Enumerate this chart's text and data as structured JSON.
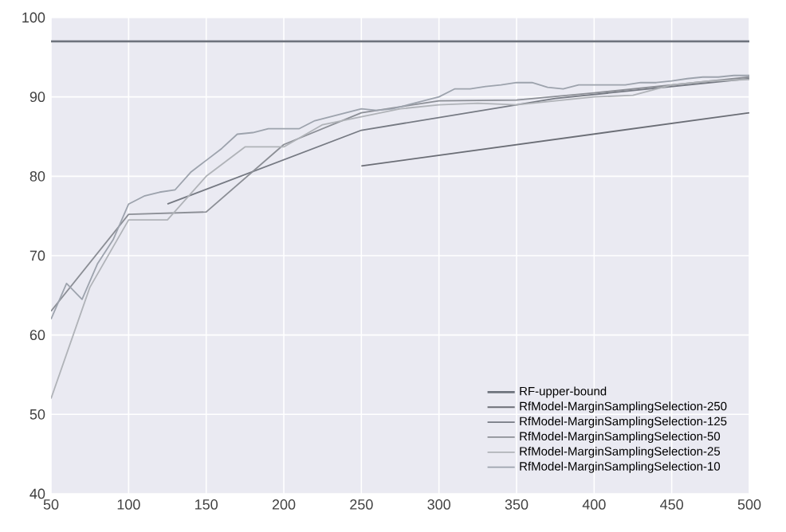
{
  "chart_data": {
    "type": "line",
    "xlim": [
      50,
      500
    ],
    "ylim": [
      40,
      100
    ],
    "xticks": [
      50,
      100,
      150,
      200,
      250,
      300,
      350,
      400,
      450,
      500
    ],
    "yticks": [
      40,
      50,
      60,
      70,
      80,
      90,
      100
    ],
    "grid": true,
    "legend": "bottom right",
    "line_style": "solid",
    "series": [
      {
        "name": "RF-upper-bound",
        "color": "#6e737d",
        "x": [
          50,
          500
        ],
        "values": [
          97,
          97
        ]
      },
      {
        "name": "RfModel-MarginSamplingSelection-250",
        "color": "#6b6e76",
        "x": [
          250,
          500
        ],
        "values": [
          81.3,
          88
        ]
      },
      {
        "name": "RfModel-MarginSamplingSelection-125",
        "color": "#767a83",
        "x": [
          125,
          250,
          375,
          500
        ],
        "values": [
          76.5,
          85.8,
          89.8,
          92.3
        ]
      },
      {
        "name": "RfModel-MarginSamplingSelection-50",
        "color": "#8c8f96",
        "x": [
          50,
          100,
          150,
          200,
          250,
          300,
          350,
          400,
          450,
          500
        ],
        "values": [
          63,
          75.2,
          75.5,
          84,
          88,
          89.5,
          89.6,
          90.5,
          91.5,
          92.5
        ]
      },
      {
        "name": "RfModel-MarginSamplingSelection-25",
        "color": "#b0b3b8",
        "x": [
          50,
          75,
          100,
          125,
          150,
          175,
          200,
          225,
          250,
          275,
          300,
          325,
          350,
          375,
          400,
          425,
          450,
          475,
          500
        ],
        "values": [
          52,
          66,
          74.5,
          74.5,
          80,
          83.7,
          83.7,
          86.5,
          87.5,
          88.5,
          89,
          89.2,
          89,
          89.5,
          90,
          90.2,
          91.5,
          92,
          92.2
        ]
      },
      {
        "name": "RfModel-MarginSamplingSelection-10",
        "color": "#9da3ad",
        "x": [
          50,
          60,
          70,
          80,
          90,
          100,
          110,
          120,
          130,
          140,
          150,
          160,
          170,
          180,
          190,
          200,
          210,
          220,
          230,
          240,
          250,
          260,
          270,
          280,
          290,
          300,
          310,
          320,
          330,
          340,
          350,
          360,
          370,
          380,
          390,
          400,
          410,
          420,
          430,
          440,
          450,
          460,
          470,
          480,
          490,
          500
        ],
        "values": [
          62,
          66.5,
          64.5,
          69,
          72,
          76.5,
          77.5,
          78,
          78.3,
          80.5,
          82,
          83.5,
          85.3,
          85.5,
          86,
          86,
          86,
          87,
          87.5,
          88,
          88.5,
          88.3,
          88.5,
          89,
          89.5,
          90,
          91,
          91,
          91.3,
          91.5,
          91.8,
          91.8,
          91.2,
          91,
          91.5,
          91.5,
          91.5,
          91.5,
          91.8,
          91.8,
          92,
          92.3,
          92.5,
          92.5,
          92.7,
          92.7
        ]
      }
    ]
  }
}
